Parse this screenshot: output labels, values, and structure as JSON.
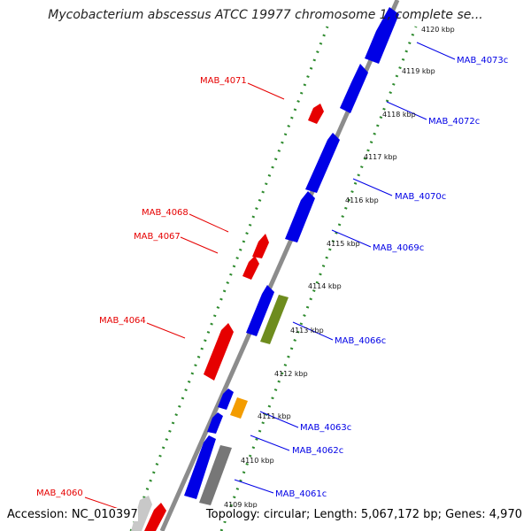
{
  "map": {
    "title": "Mycobacterium abscessus ATCC 19977 chromosome 1, complete se...",
    "accession": "Accession: NC_010397",
    "summary": "Topology: circular; Length: 5,067,172 bp; Genes: 4,970",
    "colors": {
      "forward": "#e60000",
      "reverse": "#0000e6",
      "backbone": "#8c8c8c",
      "tick": "#2d8a2d",
      "orange": "#f39c00",
      "olive": "#6e8c1e",
      "gray": "#777777",
      "lightgray": "#c8c8c8"
    },
    "kbp_labels": [
      "4120 kbp",
      "4119 kbp",
      "4118 kbp",
      "4117 kbp",
      "4116 kbp",
      "4115 kbp",
      "4114 kbp",
      "4113 kbp",
      "4112 kbp",
      "4111 kbp",
      "4110 kbp",
      "4109 kbp"
    ],
    "forward_genes": [
      {
        "label": "MAB_4071"
      },
      {
        "label": "MAB_4068"
      },
      {
        "label": "MAB_4067"
      },
      {
        "label": "MAB_4064"
      },
      {
        "label": "MAB_4060"
      }
    ],
    "reverse_genes": [
      {
        "label": "MAB_4073c"
      },
      {
        "label": "MAB_4072c"
      },
      {
        "label": "MAB_4070c"
      },
      {
        "label": "MAB_4069c"
      },
      {
        "label": "MAB_4066c"
      },
      {
        "label": "MAB_4063c"
      },
      {
        "label": "MAB_4062c"
      },
      {
        "label": "MAB_4061c"
      }
    ]
  }
}
